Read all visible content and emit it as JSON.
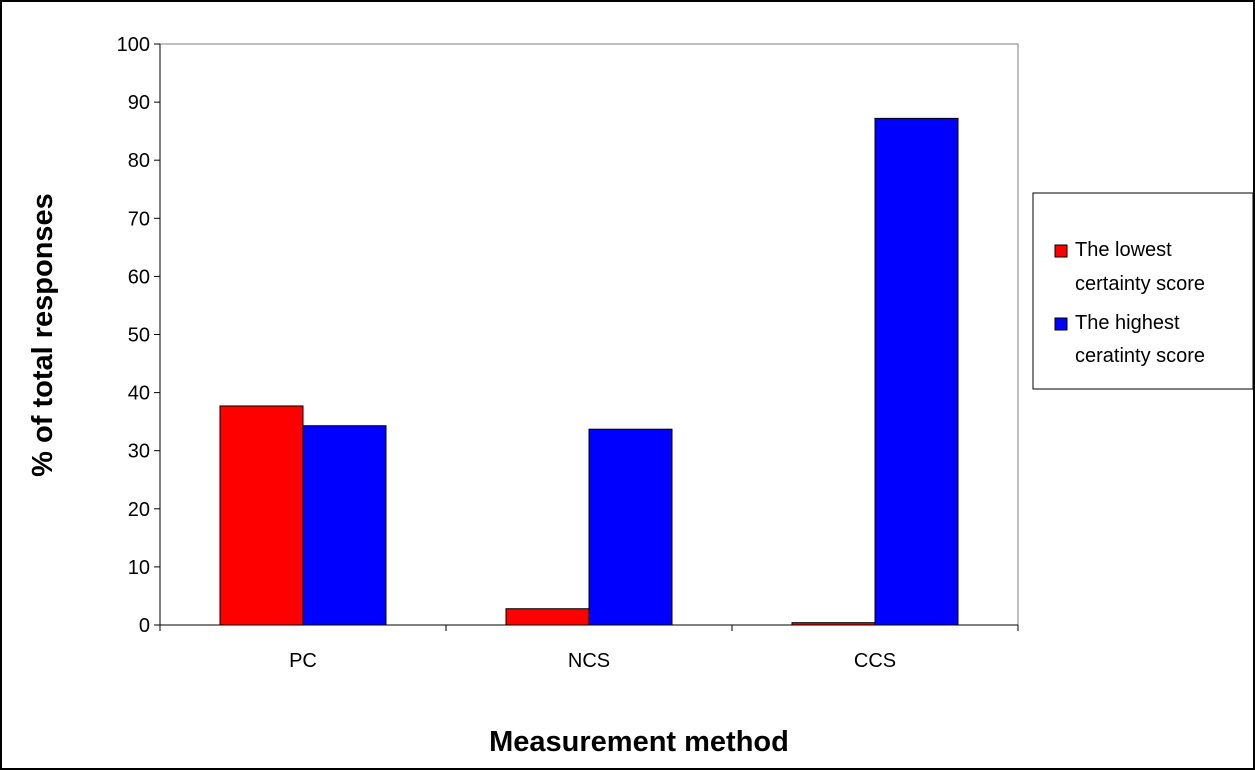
{
  "chart_data": {
    "type": "bar",
    "title": "",
    "xlabel": "Measurement method",
    "ylabel": "% of total responses",
    "categories": [
      "PC",
      "NCS",
      "CCS"
    ],
    "series": [
      {
        "name": "The lowest certainty score",
        "values": [
          37.7,
          2.8,
          0.4
        ],
        "color": "#ff0000"
      },
      {
        "name": "The highest ceratinty score",
        "values": [
          34.3,
          33.7,
          87.2
        ],
        "color": "#0000ff"
      }
    ],
    "ylim": [
      0,
      100
    ],
    "yticks": [
      0,
      10,
      20,
      30,
      40,
      50,
      60,
      70,
      80,
      90,
      100
    ],
    "grid": false,
    "legend_position": "right"
  }
}
